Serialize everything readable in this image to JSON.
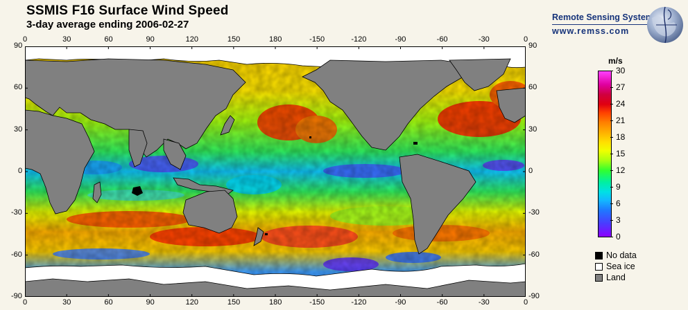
{
  "header": {
    "title": "SSMIS F16 Surface Wind Speed",
    "subtitle": "3-day average ending 2006-02-27"
  },
  "brand": {
    "name": "Remote Sensing Systems",
    "url": "www.remss.com"
  },
  "map": {
    "lon_labels": [
      "0",
      "30",
      "60",
      "90",
      "120",
      "150",
      "180",
      "-150",
      "-120",
      "-90",
      "-60",
      "-30",
      "0"
    ],
    "lat_labels": [
      "90",
      "60",
      "30",
      "0",
      "-30",
      "-60",
      "-90"
    ],
    "lon_range": [
      0,
      360
    ],
    "lat_range": [
      90,
      -90
    ],
    "colors": {
      "land": "#808080",
      "sea_ice": "#ffffff",
      "no_data": "#000000",
      "coast": "#000000"
    }
  },
  "colorbar": {
    "unit": "m/s",
    "min": 0,
    "max": 30,
    "ticks": [
      "30",
      "27",
      "24",
      "21",
      "18",
      "15",
      "12",
      "9",
      "6",
      "3",
      "0"
    ]
  },
  "legend": {
    "items": [
      {
        "label": "No data",
        "color": "#000000"
      },
      {
        "label": "Sea ice",
        "color": "#ffffff"
      },
      {
        "label": "Land",
        "color": "#808080"
      }
    ]
  }
}
